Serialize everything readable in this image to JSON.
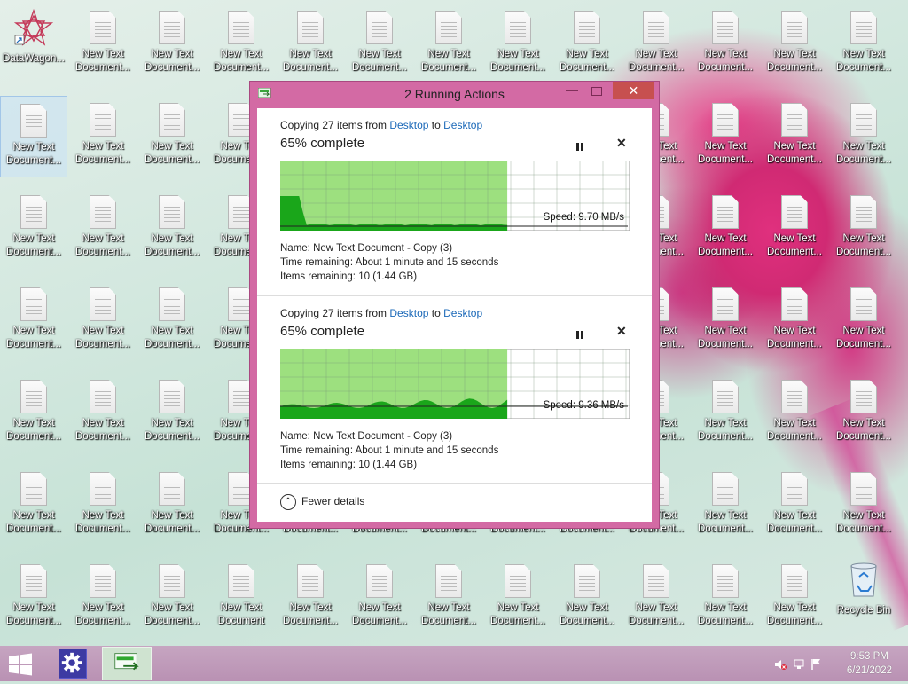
{
  "desktop": {
    "shortcut": {
      "label": "DataWagon..."
    },
    "file_label_line1": "New Text",
    "file_label_line2": "Document...",
    "file_label_line2_full": "Document",
    "recycle_bin": {
      "label": "Recycle Bin"
    }
  },
  "dialog": {
    "title": "2 Running Actions",
    "minimize_glyph": "—",
    "close_glyph": "✕",
    "ops": [
      {
        "copy_prefix": "Copying 27 items from ",
        "source": "Desktop",
        "to": " to ",
        "dest": "Desktop",
        "progress_text": "65% complete",
        "progress": 0.65,
        "speed_text": "Speed: 9.70 MB/s",
        "name_label": "Name: ",
        "name_value": "New Text Document - Copy (3)",
        "time_label": "Time remaining: ",
        "time_value": "About 1 minute and 15 seconds",
        "items_label": "Items remaining: ",
        "items_value": "10 (1.44 GB)",
        "cancel_glyph": "✕"
      },
      {
        "copy_prefix": "Copying 27 items from ",
        "source": "Desktop",
        "to": " to ",
        "dest": "Desktop",
        "progress_text": "65% complete",
        "progress": 0.65,
        "speed_text": "Speed: 9.36 MB/s",
        "name_label": "Name: ",
        "name_value": "New Text Document - Copy (3)",
        "time_label": "Time remaining: ",
        "time_value": "About 1 minute and 15 seconds",
        "items_label": "Items remaining: ",
        "items_value": "10 (1.44 GB)",
        "cancel_glyph": "✕"
      }
    ],
    "fewer_details": "Fewer details",
    "fewer_glyph": "⌃"
  },
  "taskbar": {
    "time": "9:53 PM",
    "date": "6/21/2022"
  },
  "colors": {
    "graph_fill": "#9de07f",
    "graph_wave": "#1aa61a",
    "dialog_frame": "#d36aa4",
    "close_red": "#c7504f",
    "link_blue": "#1a68b8"
  }
}
